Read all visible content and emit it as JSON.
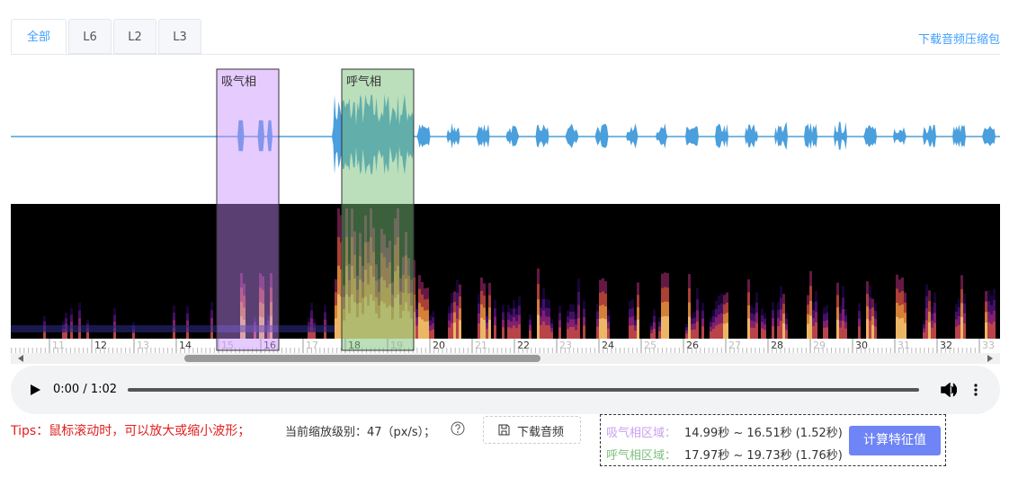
{
  "tabs": [
    "全部",
    "L6",
    "L2",
    "L3"
  ],
  "download_zip": "下载音频压缩包",
  "regions": [
    {
      "label": "吸气相"
    },
    {
      "label": "呼气相"
    }
  ],
  "timeline": [
    11,
    12,
    13,
    14,
    15,
    16,
    17,
    18,
    19,
    20,
    21,
    22,
    23,
    24,
    25,
    26,
    27,
    28,
    29,
    30,
    31,
    32,
    33
  ],
  "player": {
    "time": "0:00 / 1:02"
  },
  "tips": "Tips：鼠标滚动时，可以放大或缩小波形；",
  "zoom": "当前缩放级别：47（px/s）；",
  "download_audio": "下载音频",
  "results": [
    {
      "label": "吸气相区域：",
      "value": "14.99秒 ~ 16.51秒 (1.52秒)"
    },
    {
      "label": "呼气相区域：",
      "value": "17.97秒 ~ 19.73秒 (1.76秒)"
    }
  ],
  "compute": "计算特征值"
}
